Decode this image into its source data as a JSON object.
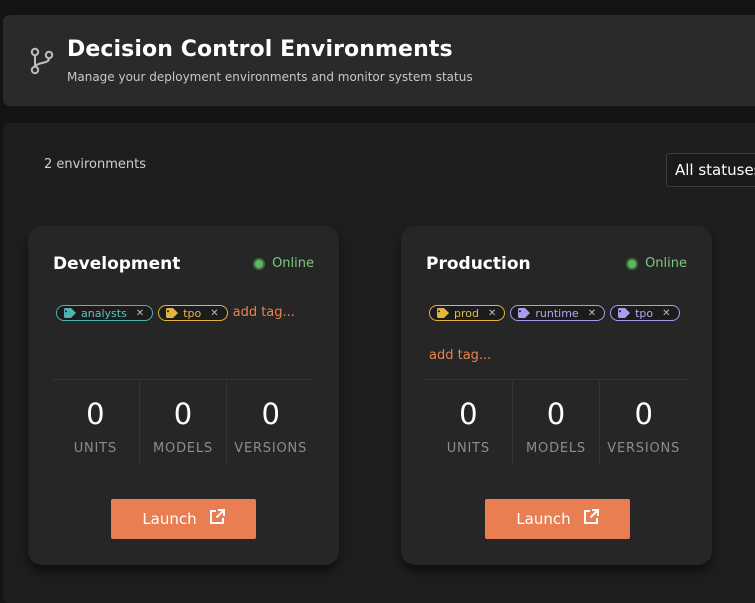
{
  "header": {
    "title": "Decision Control Environments",
    "subtitle": "Manage your deployment environments and monitor system status",
    "icon": "git-branch-icon"
  },
  "toolbar": {
    "count_label": "2 environments",
    "status_filter": "All statuses"
  },
  "environments": [
    {
      "name": "Development",
      "status": "Online",
      "tags": [
        {
          "label": "analysts",
          "color": "#4fb3b0"
        },
        {
          "label": "tpo",
          "color": "#e3b341"
        }
      ],
      "add_tag": "add tag...",
      "stats": [
        {
          "value": "0",
          "label": "UNITS"
        },
        {
          "value": "0",
          "label": "MODELS"
        },
        {
          "value": "0",
          "label": "VERSIONS"
        }
      ],
      "launch_label": "Launch"
    },
    {
      "name": "Production",
      "status": "Online",
      "tags": [
        {
          "label": "prod",
          "color": "#e3b341"
        },
        {
          "label": "runtime",
          "color": "#a99cf0"
        },
        {
          "label": "tpo",
          "color": "#a99cf0"
        }
      ],
      "add_tag": "add tag...",
      "stats": [
        {
          "value": "0",
          "label": "UNITS"
        },
        {
          "value": "0",
          "label": "MODELS"
        },
        {
          "value": "0",
          "label": "VERSIONS"
        }
      ],
      "launch_label": "Launch"
    }
  ],
  "colors": {
    "accent": "#e97e52",
    "online": "#5fb85f",
    "background": "#141414",
    "card": "#262626"
  }
}
